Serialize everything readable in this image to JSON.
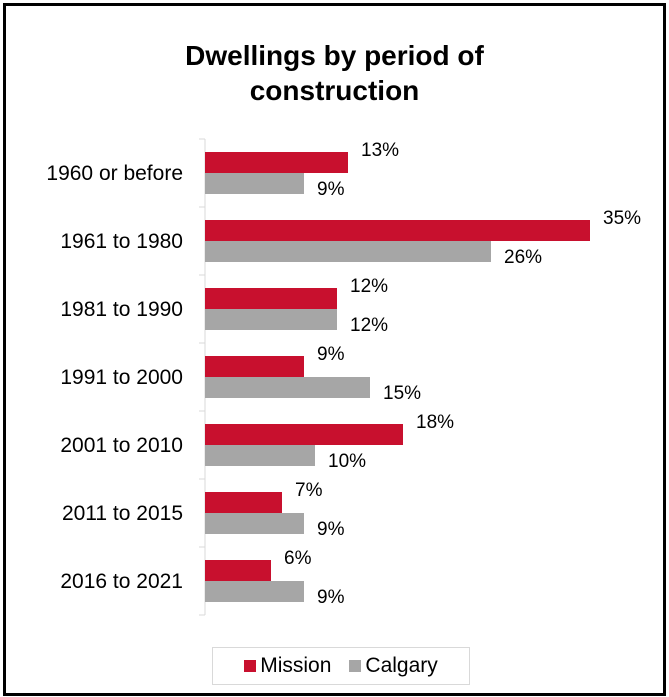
{
  "chart_data": {
    "type": "bar",
    "orientation": "horizontal",
    "title_lines": [
      "Dwellings by period of",
      "construction"
    ],
    "categories": [
      "1960 or before",
      "1961 to 1980",
      "1981 to 1990",
      "1991 to 2000",
      "2001 to 2010",
      "2011 to 2015",
      "2016 to 2021"
    ],
    "series": [
      {
        "name": "Mission",
        "color": "#c8102e",
        "values": [
          13,
          35,
          12,
          9,
          18,
          7,
          6
        ],
        "labels": [
          "13%",
          "35%",
          "12%",
          "9%",
          "18%",
          "7%",
          "6%"
        ]
      },
      {
        "name": "Calgary",
        "color": "#a6a6a6",
        "values": [
          9,
          26,
          12,
          15,
          10,
          9,
          9
        ],
        "labels": [
          "9%",
          "26%",
          "12%",
          "15%",
          "10%",
          "9%",
          "9%"
        ]
      }
    ],
    "xlim": [
      0,
      35
    ],
    "grid": false,
    "legend_position": "bottom"
  }
}
